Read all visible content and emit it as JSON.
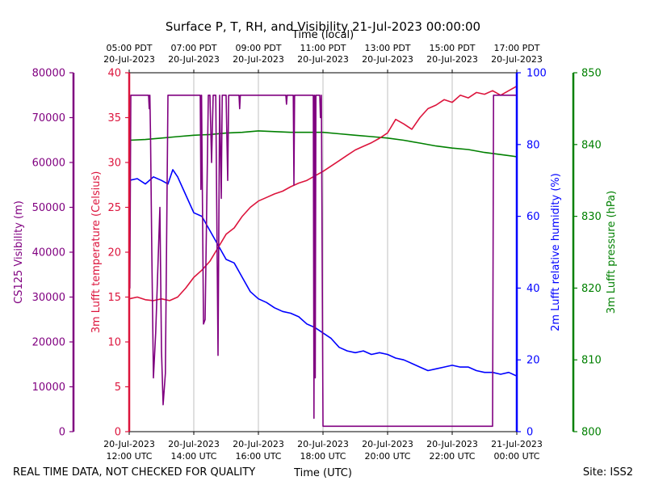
{
  "chart_data": {
    "type": "line",
    "title": "Surface P, T, RH, and Visibility 21-Jul-2023 00:00:00",
    "top_axis_label": "Time (local)",
    "bottom_axis_label": "Time (UTC)",
    "footer_left": "REAL TIME DATA, NOT CHECKED FOR QUALITY",
    "footer_right": "Site: ISS2",
    "x_range_hours_utc": [
      12,
      24
    ],
    "bottom_ticks": [
      {
        "h": 12,
        "line1": "20-Jul-2023",
        "line2": "12:00 UTC"
      },
      {
        "h": 14,
        "line1": "20-Jul-2023",
        "line2": "14:00 UTC"
      },
      {
        "h": 16,
        "line1": "20-Jul-2023",
        "line2": "16:00 UTC"
      },
      {
        "h": 18,
        "line1": "20-Jul-2023",
        "line2": "18:00 UTC"
      },
      {
        "h": 20,
        "line1": "20-Jul-2023",
        "line2": "20:00 UTC"
      },
      {
        "h": 22,
        "line1": "20-Jul-2023",
        "line2": "22:00 UTC"
      },
      {
        "h": 24,
        "line1": "21-Jul-2023",
        "line2": "00:00 UTC"
      }
    ],
    "top_ticks": [
      {
        "h": 12,
        "line1": "05:00 PDT",
        "line2": "20-Jul-2023"
      },
      {
        "h": 14,
        "line1": "07:00 PDT",
        "line2": "20-Jul-2023"
      },
      {
        "h": 16,
        "line1": "09:00 PDT",
        "line2": "20-Jul-2023"
      },
      {
        "h": 18,
        "line1": "11:00 PDT",
        "line2": "20-Jul-2023"
      },
      {
        "h": 20,
        "line1": "13:00 PDT",
        "line2": "20-Jul-2023"
      },
      {
        "h": 22,
        "line1": "15:00 PDT",
        "line2": "20-Jul-2023"
      },
      {
        "h": 24,
        "line1": "17:00 PDT",
        "line2": "20-Jul-2023"
      }
    ],
    "axes": {
      "visibility": {
        "label": "CS125 Visibility (m)",
        "color": "#800080",
        "ylim": [
          0,
          80000
        ],
        "ticks": [
          0,
          10000,
          20000,
          30000,
          40000,
          50000,
          60000,
          70000,
          80000
        ]
      },
      "temperature": {
        "label": "3m Lufft temperature (Celsius)",
        "color": "#dc143c",
        "ylim": [
          0,
          40
        ],
        "ticks": [
          0,
          5,
          10,
          15,
          20,
          25,
          30,
          35,
          40
        ]
      },
      "humidity": {
        "label": "2m Lufft relative humidity (%)",
        "color": "#0000ff",
        "ylim": [
          0,
          100
        ],
        "ticks": [
          0,
          20,
          40,
          60,
          80,
          100
        ]
      },
      "pressure": {
        "label": "3m Lufft pressure (hPa)",
        "color": "#008000",
        "ylim": [
          800,
          850
        ],
        "ticks": [
          800,
          810,
          820,
          830,
          840,
          850
        ]
      }
    },
    "series": [
      {
        "name": "temperature",
        "axis": "temperature",
        "color": "#dc143c",
        "x": [
          12.0,
          12.25,
          12.5,
          12.75,
          13.0,
          13.25,
          13.5,
          13.75,
          14.0,
          14.25,
          14.5,
          14.75,
          15.0,
          15.25,
          15.5,
          15.75,
          16.0,
          16.25,
          16.5,
          16.75,
          17.0,
          17.25,
          17.5,
          17.75,
          18.0,
          18.25,
          18.5,
          18.75,
          19.0,
          19.25,
          19.5,
          19.75,
          20.0,
          20.25,
          20.5,
          20.75,
          21.0,
          21.25,
          21.5,
          21.75,
          22.0,
          22.25,
          22.5,
          22.75,
          23.0,
          23.25,
          23.5,
          23.75,
          24.0
        ],
        "values": [
          14.8,
          15.0,
          14.7,
          14.6,
          14.8,
          14.6,
          15.0,
          16.0,
          17.2,
          18.0,
          19.0,
          20.5,
          22.0,
          22.7,
          24.0,
          25.0,
          25.7,
          26.1,
          26.5,
          26.8,
          27.3,
          27.7,
          28.0,
          28.5,
          29.0,
          29.6,
          30.2,
          30.8,
          31.4,
          31.8,
          32.2,
          32.7,
          33.3,
          34.8,
          34.3,
          33.7,
          35.0,
          36.0,
          36.4,
          37.0,
          36.7,
          37.5,
          37.2,
          37.8,
          37.6,
          38.0,
          37.5,
          38.0,
          38.5
        ]
      },
      {
        "name": "humidity",
        "axis": "humidity",
        "color": "#0000ff",
        "x": [
          12.0,
          12.25,
          12.5,
          12.75,
          13.0,
          13.2,
          13.35,
          13.5,
          13.75,
          14.0,
          14.25,
          14.5,
          14.75,
          15.0,
          15.25,
          15.5,
          15.75,
          16.0,
          16.25,
          16.5,
          16.75,
          17.0,
          17.25,
          17.5,
          17.75,
          18.0,
          18.25,
          18.5,
          18.75,
          19.0,
          19.25,
          19.5,
          19.75,
          20.0,
          20.25,
          20.5,
          20.75,
          21.0,
          21.25,
          21.5,
          21.75,
          22.0,
          22.25,
          22.5,
          22.75,
          23.0,
          23.25,
          23.5,
          23.75,
          24.0
        ],
        "values": [
          70,
          70.5,
          69,
          71,
          70,
          69,
          73,
          71,
          66,
          61,
          60,
          56,
          52,
          48,
          47,
          43,
          39,
          37,
          36,
          34.5,
          33.5,
          33,
          32,
          30,
          29,
          27.5,
          26,
          23.5,
          22.5,
          22,
          22.5,
          21.5,
          22,
          21.5,
          20.5,
          20,
          19,
          18,
          17,
          17.5,
          18,
          18.5,
          18,
          18,
          17,
          16.5,
          16.5,
          16,
          16.5,
          15.5
        ]
      },
      {
        "name": "pressure",
        "axis": "pressure",
        "color": "#008000",
        "x": [
          12.0,
          12.5,
          13.0,
          13.5,
          14.0,
          14.5,
          15.0,
          15.5,
          16.0,
          16.5,
          17.0,
          17.5,
          18.0,
          18.5,
          19.0,
          19.5,
          20.0,
          20.5,
          21.0,
          21.5,
          22.0,
          22.5,
          23.0,
          23.5,
          24.0
        ],
        "values": [
          840.6,
          840.7,
          840.9,
          841.1,
          841.3,
          841.4,
          841.6,
          841.7,
          841.9,
          841.8,
          841.7,
          841.7,
          841.7,
          841.5,
          841.3,
          841.1,
          840.9,
          840.6,
          840.2,
          839.8,
          839.5,
          839.3,
          838.9,
          838.6,
          838.3
        ]
      },
      {
        "name": "visibility",
        "axis": "visibility",
        "color": "#800080",
        "x": [
          12.0,
          12.02,
          12.05,
          12.08,
          12.6,
          12.62,
          12.64,
          12.66,
          12.7,
          12.75,
          12.82,
          12.95,
          13.0,
          13.05,
          13.12,
          13.2,
          13.25,
          14.2,
          14.22,
          14.24,
          14.3,
          14.35,
          14.45,
          14.5,
          14.55,
          14.6,
          14.62,
          14.68,
          14.75,
          14.8,
          14.85,
          14.88,
          14.92,
          14.97,
          15.0,
          15.05,
          15.08,
          15.4,
          15.42,
          15.44,
          15.46,
          16.0,
          16.85,
          16.87,
          16.89,
          17.0,
          17.08,
          17.1,
          17.12,
          17.15,
          17.7,
          17.72,
          17.74,
          17.76,
          17.78,
          17.8,
          17.82,
          17.9,
          17.92,
          17.95,
          18.0,
          23.25,
          23.28,
          23.3,
          24.0
        ],
        "values": [
          75000,
          32000,
          75000,
          75000,
          75000,
          72000,
          75000,
          66000,
          40000,
          12000,
          22000,
          50000,
          18000,
          6000,
          13000,
          75000,
          75000,
          75000,
          54000,
          75000,
          24000,
          25000,
          75000,
          75000,
          60000,
          75000,
          75000,
          75000,
          17000,
          75000,
          52000,
          75000,
          75000,
          75000,
          75000,
          56000,
          75000,
          75000,
          72000,
          75000,
          75000,
          75000,
          75000,
          73000,
          75000,
          75000,
          75000,
          55000,
          75000,
          75000,
          75000,
          3000,
          75000,
          12000,
          75000,
          75000,
          75000,
          75000,
          70000,
          75000,
          1200,
          1200,
          75000,
          75000,
          75000
        ]
      }
    ]
  }
}
